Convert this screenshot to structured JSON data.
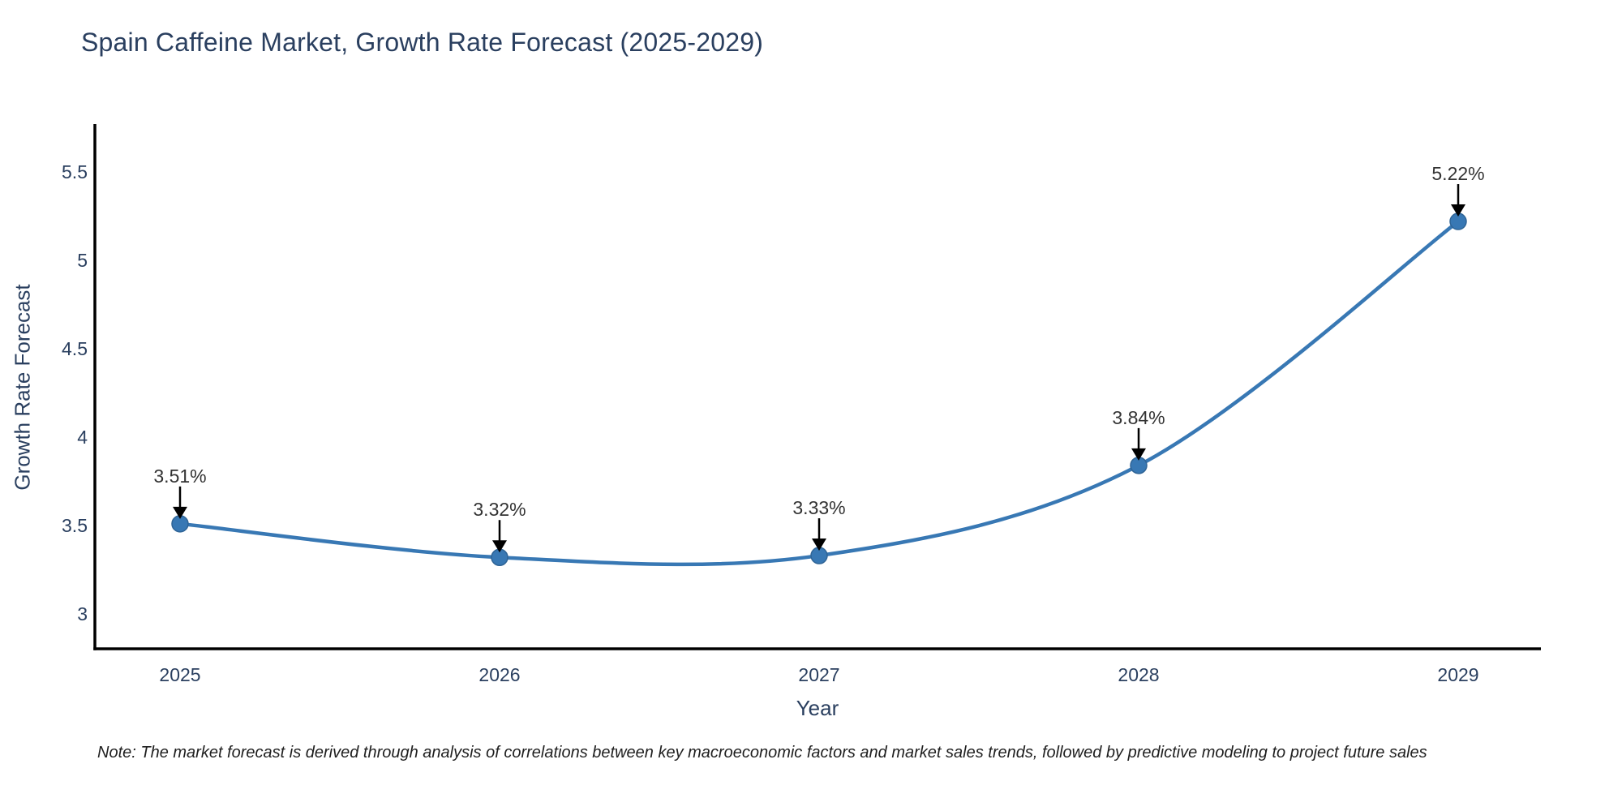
{
  "chart_data": {
    "type": "line",
    "title": "Spain Caffeine Market, Growth Rate Forecast (2025-2029)",
    "xlabel": "Year",
    "ylabel": "Growth Rate Forecast",
    "categories": [
      "2025",
      "2026",
      "2027",
      "2028",
      "2029"
    ],
    "values": [
      3.51,
      3.32,
      3.33,
      3.84,
      5.22
    ],
    "point_labels": [
      "3.51%",
      "3.32%",
      "3.33%",
      "3.84%",
      "5.22%"
    ],
    "yticks": [
      3,
      3.5,
      4,
      4.5,
      5,
      5.5
    ],
    "ylim": [
      2.8,
      5.77
    ],
    "line_shape": "spline",
    "grid": false,
    "legend_position": "none",
    "line_color": "#3878b4",
    "marker_color": "#3878b4",
    "marker_edge_color": "#2f6496",
    "arrow_color": "#000000",
    "axis_line_color": "#000000",
    "text_color": "#2a3f5f",
    "annotation_text_color": "#333333"
  },
  "note": "Note: The market forecast is derived through analysis of correlations between key macroeconomic factors and market sales trends, followed by predictive modeling to project future sales"
}
